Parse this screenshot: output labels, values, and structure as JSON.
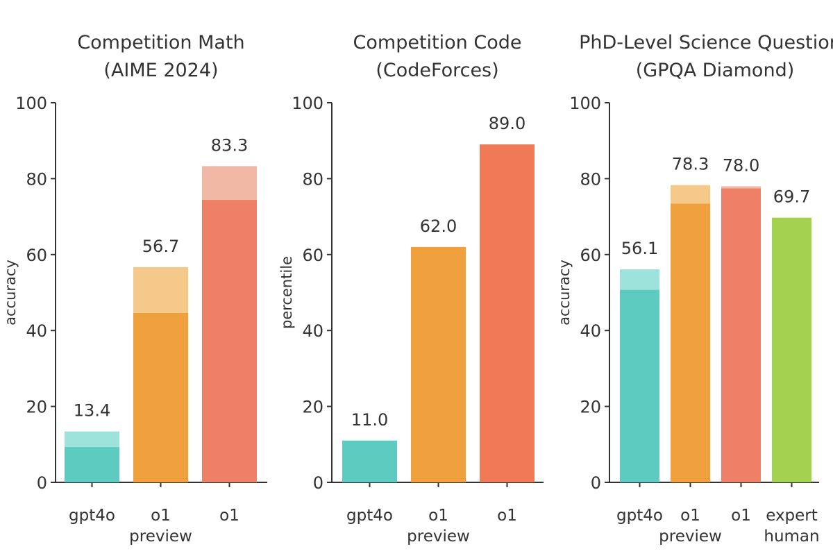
{
  "colors": {
    "gpt4o": "#5ecbc0",
    "gpt4o_light": "#9de3dc",
    "o1_preview": "#f0a03c",
    "o1_preview_light": "#f4c98a",
    "o1": "#ef8068",
    "o1_light": "#f2b8a6",
    "o1_code": "#ef7a55",
    "expert_human": "#a3d150",
    "axis": "#333333"
  },
  "chart_data": [
    {
      "type": "bar",
      "title": [
        "Competition Math",
        "(AIME 2024)"
      ],
      "ylabel": "accuracy",
      "ylim": [
        0,
        100
      ],
      "yticks": [
        0,
        20,
        40,
        60,
        80,
        100
      ],
      "categories": [
        [
          "gpt4o"
        ],
        [
          "o1",
          "preview"
        ],
        [
          "o1"
        ]
      ],
      "values": [
        13.4,
        56.7,
        83.3
      ],
      "solid_values": [
        9.3,
        44.6,
        74.4
      ],
      "labels": [
        "13.4",
        "56.7",
        "83.3"
      ],
      "color_keys": [
        "gpt4o",
        "o1_preview",
        "o1"
      ],
      "grid": false
    },
    {
      "type": "bar",
      "title": [
        "Competition Code",
        "(CodeForces)"
      ],
      "ylabel": "percentile",
      "ylim": [
        0,
        100
      ],
      "yticks": [
        0,
        20,
        40,
        60,
        80,
        100
      ],
      "categories": [
        [
          "gpt4o"
        ],
        [
          "o1",
          "preview"
        ],
        [
          "o1"
        ]
      ],
      "values": [
        11.0,
        62.0,
        89.0
      ],
      "solid_values": [
        11.0,
        62.0,
        89.0
      ],
      "labels": [
        "11.0",
        "62.0",
        "89.0"
      ],
      "color_keys": [
        "gpt4o",
        "o1_preview",
        "o1_code"
      ],
      "grid": false
    },
    {
      "type": "bar",
      "title": [
        "PhD-Level Science Questions",
        "(GPQA Diamond)"
      ],
      "ylabel": "accuracy",
      "ylim": [
        0,
        100
      ],
      "yticks": [
        0,
        20,
        40,
        60,
        80,
        100
      ],
      "categories": [
        [
          "gpt4o"
        ],
        [
          "o1",
          "preview"
        ],
        [
          "o1"
        ],
        [
          "expert",
          "human"
        ]
      ],
      "values": [
        56.1,
        78.3,
        78.0,
        69.7
      ],
      "solid_values": [
        50.7,
        73.4,
        77.4,
        69.7
      ],
      "labels": [
        "56.1",
        "78.3",
        "78.0",
        "69.7"
      ],
      "color_keys": [
        "gpt4o",
        "o1_preview",
        "o1",
        "expert_human"
      ],
      "grid": false
    }
  ]
}
